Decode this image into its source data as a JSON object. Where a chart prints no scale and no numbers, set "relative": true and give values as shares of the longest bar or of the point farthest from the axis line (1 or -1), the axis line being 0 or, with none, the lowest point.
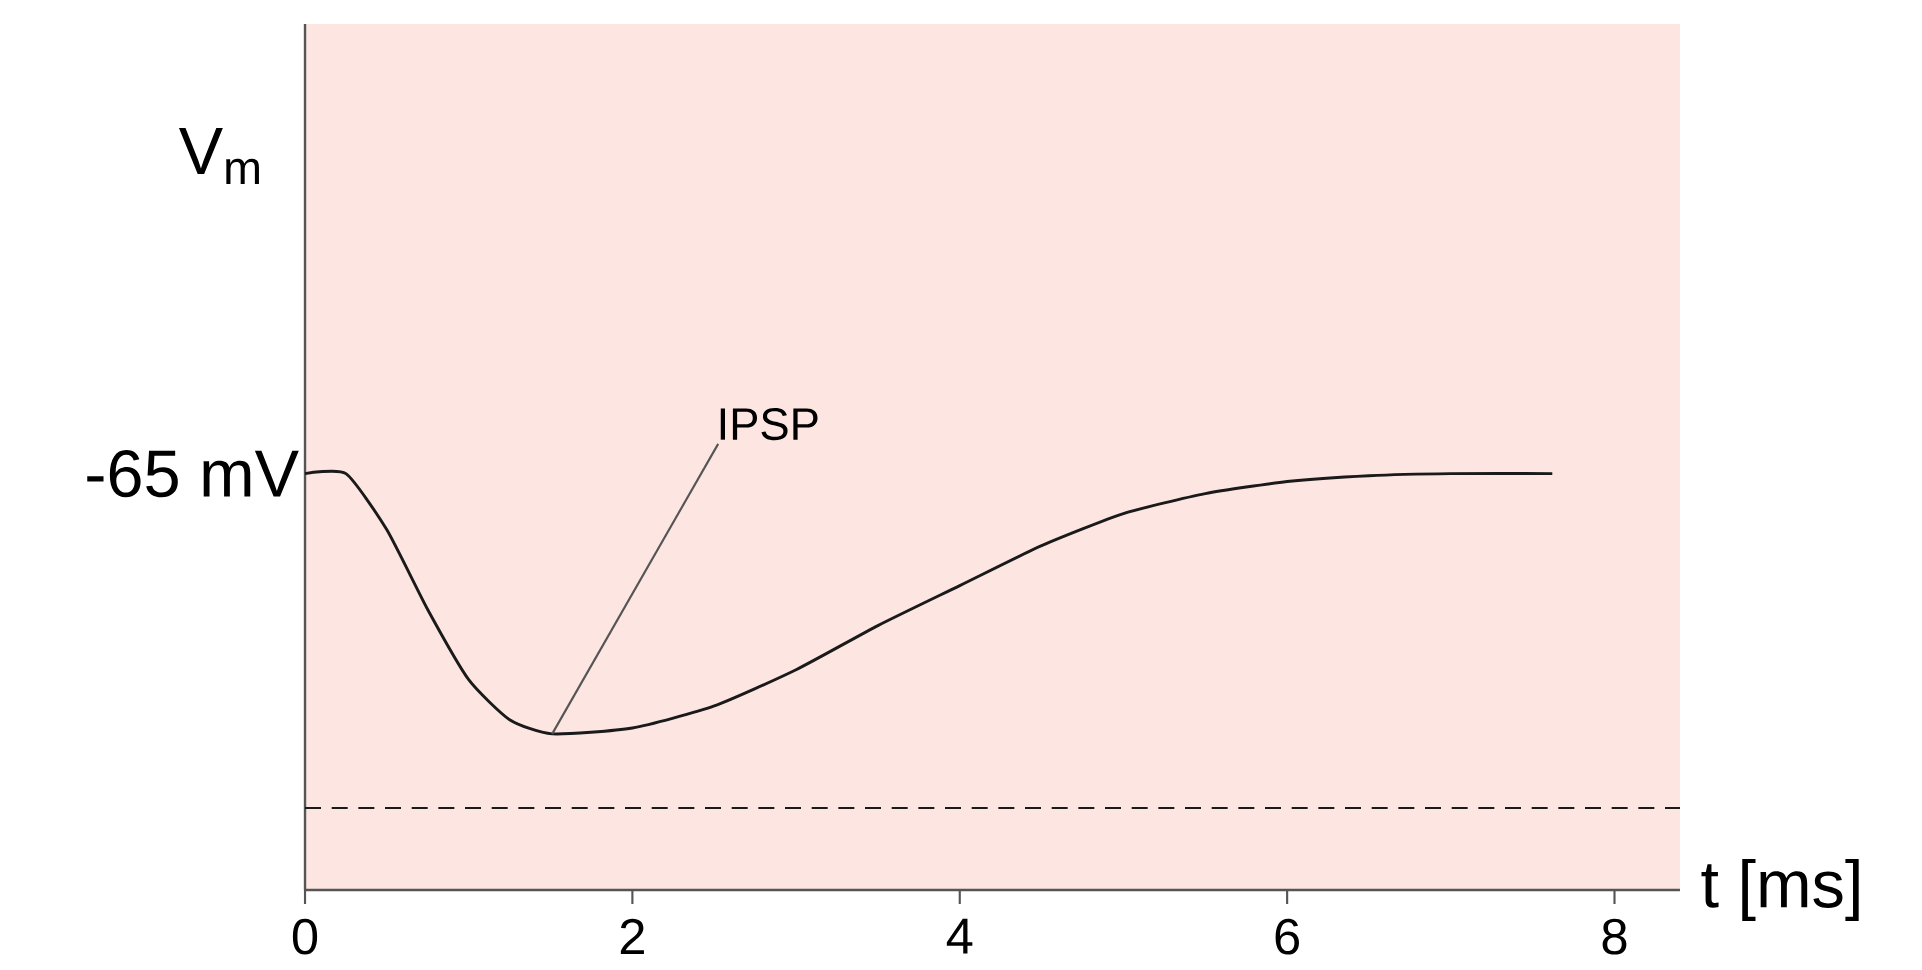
{
  "chart_data": {
    "type": "line",
    "relative": true,
    "ylabel": "V$_{m}$",
    "xlabel": "t [ms]",
    "xlim": [
      0,
      8.4
    ],
    "xticks": [
      0,
      2,
      4,
      6,
      8
    ],
    "x": [
      0,
      0.25,
      0.5,
      0.75,
      1.0,
      1.25,
      1.51,
      2,
      2.5,
      3,
      3.5,
      4,
      4.5,
      5,
      5.5,
      6,
      6.5,
      7,
      7.62
    ],
    "series": [
      {
        "color": "#1a1a1a",
        "values": [
          1.0,
          1.0,
          0.865,
          0.673,
          0.505,
          0.409,
          0.375,
          0.389,
          0.442,
          0.529,
          0.635,
          0.731,
          0.827,
          0.904,
          0.952,
          0.981,
          0.995,
          1.0,
          1.0
        ]
      }
    ],
    "line_style": "solid",
    "ref_lines": [
      {
        "axis": "y",
        "value": 0.197,
        "color": "#1a1a1a",
        "line_style": "dashed"
      }
    ],
    "annotations": [
      {
        "text": "-65 mV",
        "x": 0,
        "y": 1
      },
      {
        "text": "IPSP",
        "x": 1.51,
        "y": 0.375
      }
    ]
  }
}
